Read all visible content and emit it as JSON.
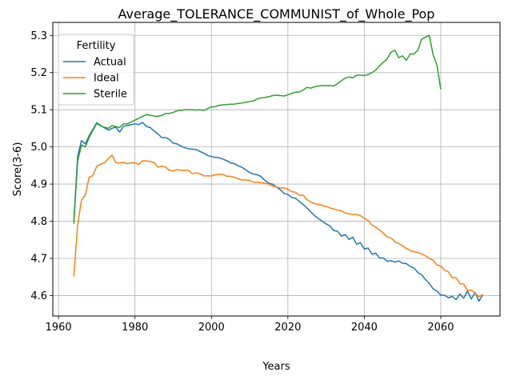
{
  "chart_data": {
    "type": "line",
    "title": "Average_TOLERANCE_COMMUNIST_of_Whole_Pop",
    "xlabel": "Years",
    "ylabel": "Score(3-6)",
    "xlim": [
      1958.5,
      2075.5
    ],
    "ylim": [
      4.545,
      5.335
    ],
    "xticks": [
      1960,
      1980,
      2000,
      2020,
      2040,
      2060
    ],
    "xtick_labels": [
      "1960",
      "1980",
      "2000",
      "2020",
      "2040",
      "2060"
    ],
    "yticks": [
      4.6,
      4.7,
      4.8,
      4.9,
      5.0,
      5.1,
      5.2,
      5.3
    ],
    "ytick_labels": [
      "4.6",
      "4.7",
      "4.8",
      "4.9",
      "5.0",
      "5.1",
      "5.2",
      "5.3"
    ],
    "grid": true,
    "legend": {
      "title": "Fertility",
      "position": "top-left"
    },
    "series": [
      {
        "name": "Actual",
        "color": "#1f77b4",
        "points": [
          [
            1964,
            4.8
          ],
          [
            1965,
            4.975
          ],
          [
            1966,
            5.017
          ],
          [
            1967,
            5.008
          ],
          [
            1968,
            5.03
          ],
          [
            1970,
            5.065
          ],
          [
            1971,
            5.058
          ],
          [
            1973,
            5.045
          ],
          [
            1974,
            5.05
          ],
          [
            1975,
            5.053
          ],
          [
            1976,
            5.04
          ],
          [
            1977,
            5.055
          ],
          [
            1979,
            5.06
          ],
          [
            1980,
            5.062
          ],
          [
            1981,
            5.06
          ],
          [
            1982,
            5.066
          ],
          [
            1983,
            5.055
          ],
          [
            1984,
            5.052
          ],
          [
            1985,
            5.043
          ],
          [
            1986,
            5.035
          ],
          [
            1987,
            5.025
          ],
          [
            1988,
            5.025
          ],
          [
            1989,
            5.02
          ],
          [
            1990,
            5.01
          ],
          [
            1991,
            5.008
          ],
          [
            1992,
            5.002
          ],
          [
            1993,
            4.998
          ],
          [
            1994,
            4.995
          ],
          [
            1996,
            4.993
          ],
          [
            1997,
            4.988
          ],
          [
            1998,
            4.983
          ],
          [
            1999,
            4.977
          ],
          [
            2000,
            4.974
          ],
          [
            2001,
            4.972
          ],
          [
            2002,
            4.971
          ],
          [
            2003,
            4.967
          ],
          [
            2004,
            4.963
          ],
          [
            2005,
            4.957
          ],
          [
            2006,
            4.955
          ],
          [
            2007,
            4.949
          ],
          [
            2008,
            4.945
          ],
          [
            2009,
            4.938
          ],
          [
            2010,
            4.931
          ],
          [
            2011,
            4.927
          ],
          [
            2012,
            4.925
          ],
          [
            2013,
            4.92
          ],
          [
            2014,
            4.91
          ],
          [
            2015,
            4.902
          ],
          [
            2016,
            4.9
          ],
          [
            2017,
            4.892
          ],
          [
            2018,
            4.885
          ],
          [
            2019,
            4.875
          ],
          [
            2020,
            4.872
          ],
          [
            2021,
            4.864
          ],
          [
            2022,
            4.862
          ],
          [
            2023,
            4.853
          ],
          [
            2024,
            4.845
          ],
          [
            2025,
            4.836
          ],
          [
            2026,
            4.825
          ],
          [
            2027,
            4.815
          ],
          [
            2028,
            4.807
          ],
          [
            2029,
            4.8
          ],
          [
            2030,
            4.793
          ],
          [
            2031,
            4.787
          ],
          [
            2032,
            4.775
          ],
          [
            2033,
            4.773
          ],
          [
            2034,
            4.76
          ],
          [
            2035,
            4.764
          ],
          [
            2036,
            4.751
          ],
          [
            2037,
            4.757
          ],
          [
            2038,
            4.738
          ],
          [
            2039,
            4.742
          ],
          [
            2040,
            4.725
          ],
          [
            2041,
            4.728
          ],
          [
            2042,
            4.711
          ],
          [
            2043,
            4.714
          ],
          [
            2044,
            4.701
          ],
          [
            2045,
            4.701
          ],
          [
            2046,
            4.692
          ],
          [
            2047,
            4.694
          ],
          [
            2048,
            4.69
          ],
          [
            2049,
            4.693
          ],
          [
            2050,
            4.687
          ],
          [
            2051,
            4.686
          ],
          [
            2052,
            4.678
          ],
          [
            2053,
            4.674
          ],
          [
            2054,
            4.662
          ],
          [
            2055,
            4.656
          ],
          [
            2056,
            4.643
          ],
          [
            2057,
            4.633
          ],
          [
            2058,
            4.618
          ],
          [
            2059,
            4.612
          ],
          [
            2060,
            4.601
          ],
          [
            2061,
            4.601
          ],
          [
            2062,
            4.594
          ],
          [
            2063,
            4.598
          ],
          [
            2064,
            4.589
          ],
          [
            2065,
            4.604
          ],
          [
            2066,
            4.593
          ],
          [
            2067,
            4.612
          ],
          [
            2068,
            4.591
          ],
          [
            2069,
            4.608
          ],
          [
            2070,
            4.585
          ],
          [
            2071,
            4.602
          ]
        ]
      },
      {
        "name": "Ideal",
        "color": "#ff7f0e",
        "points": [
          [
            1964,
            4.652
          ],
          [
            1965,
            4.79
          ],
          [
            1966,
            4.857
          ],
          [
            1967,
            4.87
          ],
          [
            1968,
            4.918
          ],
          [
            1969,
            4.923
          ],
          [
            1970,
            4.948
          ],
          [
            1971,
            4.953
          ],
          [
            1972,
            4.957
          ],
          [
            1973,
            4.968
          ],
          [
            1974,
            4.978
          ],
          [
            1975,
            4.957
          ],
          [
            1976,
            4.957
          ],
          [
            1977,
            4.958
          ],
          [
            1978,
            4.955
          ],
          [
            1979,
            4.957
          ],
          [
            1980,
            4.957
          ],
          [
            1981,
            4.953
          ],
          [
            1982,
            4.963
          ],
          [
            1983,
            4.962
          ],
          [
            1984,
            4.961
          ],
          [
            1985,
            4.958
          ],
          [
            1986,
            4.945
          ],
          [
            1987,
            4.948
          ],
          [
            1988,
            4.946
          ],
          [
            1989,
            4.937
          ],
          [
            1990,
            4.935
          ],
          [
            1991,
            4.939
          ],
          [
            1992,
            4.937
          ],
          [
            1993,
            4.937
          ],
          [
            1994,
            4.937
          ],
          [
            1995,
            4.928
          ],
          [
            1996,
            4.93
          ],
          [
            1997,
            4.928
          ],
          [
            1998,
            4.922
          ],
          [
            1999,
            4.922
          ],
          [
            2000,
            4.922
          ],
          [
            2001,
            4.925
          ],
          [
            2002,
            4.926
          ],
          [
            2003,
            4.926
          ],
          [
            2004,
            4.921
          ],
          [
            2005,
            4.921
          ],
          [
            2006,
            4.918
          ],
          [
            2007,
            4.914
          ],
          [
            2008,
            4.911
          ],
          [
            2009,
            4.911
          ],
          [
            2010,
            4.91
          ],
          [
            2011,
            4.905
          ],
          [
            2012,
            4.905
          ],
          [
            2013,
            4.904
          ],
          [
            2014,
            4.902
          ],
          [
            2015,
            4.9
          ],
          [
            2016,
            4.895
          ],
          [
            2017,
            4.892
          ],
          [
            2018,
            4.89
          ],
          [
            2019,
            4.89
          ],
          [
            2020,
            4.886
          ],
          [
            2021,
            4.88
          ],
          [
            2022,
            4.878
          ],
          [
            2023,
            4.87
          ],
          [
            2024,
            4.87
          ],
          [
            2025,
            4.858
          ],
          [
            2026,
            4.852
          ],
          [
            2027,
            4.847
          ],
          [
            2028,
            4.845
          ],
          [
            2029,
            4.842
          ],
          [
            2030,
            4.84
          ],
          [
            2031,
            4.836
          ],
          [
            2032,
            4.833
          ],
          [
            2033,
            4.83
          ],
          [
            2034,
            4.828
          ],
          [
            2035,
            4.822
          ],
          [
            2036,
            4.82
          ],
          [
            2037,
            4.818
          ],
          [
            2038,
            4.818
          ],
          [
            2039,
            4.815
          ],
          [
            2040,
            4.808
          ],
          [
            2041,
            4.802
          ],
          [
            2042,
            4.79
          ],
          [
            2043,
            4.784
          ],
          [
            2044,
            4.776
          ],
          [
            2045,
            4.768
          ],
          [
            2046,
            4.758
          ],
          [
            2047,
            4.755
          ],
          [
            2048,
            4.745
          ],
          [
            2049,
            4.74
          ],
          [
            2050,
            4.734
          ],
          [
            2051,
            4.727
          ],
          [
            2052,
            4.721
          ],
          [
            2053,
            4.718
          ],
          [
            2054,
            4.716
          ],
          [
            2055,
            4.712
          ],
          [
            2056,
            4.707
          ],
          [
            2057,
            4.7
          ],
          [
            2058,
            4.695
          ],
          [
            2059,
            4.682
          ],
          [
            2060,
            4.68
          ],
          [
            2061,
            4.668
          ],
          [
            2062,
            4.664
          ],
          [
            2063,
            4.648
          ],
          [
            2064,
            4.648
          ],
          [
            2065,
            4.632
          ],
          [
            2066,
            4.631
          ],
          [
            2067,
            4.614
          ],
          [
            2068,
            4.615
          ],
          [
            2069,
            4.606
          ],
          [
            2070,
            4.597
          ],
          [
            2071,
            4.603
          ]
        ]
      },
      {
        "name": "Sterile",
        "color": "#2ca02c",
        "points": [
          [
            1964,
            4.793
          ],
          [
            1965,
            4.962
          ],
          [
            1966,
            5.005
          ],
          [
            1967,
            5.0
          ],
          [
            1968,
            5.025
          ],
          [
            1969,
            5.045
          ],
          [
            1970,
            5.063
          ],
          [
            1971,
            5.057
          ],
          [
            1972,
            5.053
          ],
          [
            1973,
            5.05
          ],
          [
            1974,
            5.057
          ],
          [
            1975,
            5.055
          ],
          [
            1976,
            5.052
          ],
          [
            1977,
            5.062
          ],
          [
            1978,
            5.062
          ],
          [
            1979,
            5.067
          ],
          [
            1980,
            5.072
          ],
          [
            1981,
            5.077
          ],
          [
            1982,
            5.082
          ],
          [
            1983,
            5.087
          ],
          [
            1984,
            5.085
          ],
          [
            1985,
            5.083
          ],
          [
            1986,
            5.082
          ],
          [
            1987,
            5.085
          ],
          [
            1988,
            5.09
          ],
          [
            1989,
            5.09
          ],
          [
            1990,
            5.093
          ],
          [
            1991,
            5.097
          ],
          [
            1992,
            5.098
          ],
          [
            1993,
            5.1
          ],
          [
            1994,
            5.1
          ],
          [
            1995,
            5.1
          ],
          [
            1996,
            5.099
          ],
          [
            1997,
            5.1
          ],
          [
            1998,
            5.098
          ],
          [
            1999,
            5.103
          ],
          [
            2000,
            5.108
          ],
          [
            2001,
            5.108
          ],
          [
            2002,
            5.112
          ],
          [
            2003,
            5.113
          ],
          [
            2004,
            5.114
          ],
          [
            2005,
            5.115
          ],
          [
            2006,
            5.115
          ],
          [
            2007,
            5.117
          ],
          [
            2008,
            5.118
          ],
          [
            2009,
            5.12
          ],
          [
            2010,
            5.122
          ],
          [
            2011,
            5.124
          ],
          [
            2012,
            5.129
          ],
          [
            2013,
            5.132
          ],
          [
            2014,
            5.133
          ],
          [
            2015,
            5.135
          ],
          [
            2016,
            5.138
          ],
          [
            2017,
            5.139
          ],
          [
            2018,
            5.138
          ],
          [
            2019,
            5.137
          ],
          [
            2020,
            5.14
          ],
          [
            2021,
            5.144
          ],
          [
            2022,
            5.147
          ],
          [
            2023,
            5.148
          ],
          [
            2024,
            5.153
          ],
          [
            2025,
            5.16
          ],
          [
            2026,
            5.158
          ],
          [
            2027,
            5.162
          ],
          [
            2028,
            5.164
          ],
          [
            2029,
            5.165
          ],
          [
            2030,
            5.165
          ],
          [
            2031,
            5.165
          ],
          [
            2032,
            5.164
          ],
          [
            2033,
            5.17
          ],
          [
            2034,
            5.178
          ],
          [
            2035,
            5.185
          ],
          [
            2036,
            5.188
          ],
          [
            2037,
            5.186
          ],
          [
            2038,
            5.193
          ],
          [
            2039,
            5.193
          ],
          [
            2040,
            5.192
          ],
          [
            2041,
            5.195
          ],
          [
            2042,
            5.2
          ],
          [
            2043,
            5.207
          ],
          [
            2044,
            5.218
          ],
          [
            2045,
            5.228
          ],
          [
            2046,
            5.237
          ],
          [
            2047,
            5.255
          ],
          [
            2048,
            5.26
          ],
          [
            2049,
            5.24
          ],
          [
            2050,
            5.245
          ],
          [
            2051,
            5.233
          ],
          [
            2052,
            5.25
          ],
          [
            2053,
            5.25
          ],
          [
            2054,
            5.26
          ],
          [
            2055,
            5.29
          ],
          [
            2056,
            5.295
          ],
          [
            2057,
            5.3
          ],
          [
            2058,
            5.248
          ],
          [
            2059,
            5.22
          ],
          [
            2060,
            5.155
          ]
        ]
      }
    ]
  }
}
